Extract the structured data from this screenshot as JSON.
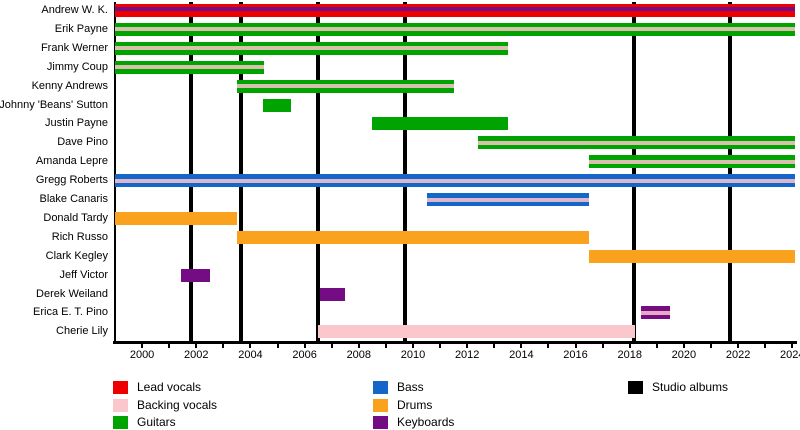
{
  "chart_data": {
    "type": "timeline",
    "description": "Band member tenure timeline (Gantt-style) with studio album release markers",
    "x_axis": {
      "min": 1999,
      "max": 2024.1,
      "labeled_ticks": [
        2000,
        2002,
        2004,
        2006,
        2008,
        2010,
        2012,
        2014,
        2016,
        2018,
        2020,
        2022,
        2024
      ],
      "minor_tick_every": 1,
      "grid": false
    },
    "roles": {
      "lead_vocals": {
        "label": "Lead vocals",
        "color": "#ee0000"
      },
      "backing_vocals": {
        "label": "Backing vocals",
        "color": "#f9c7cc"
      },
      "guitars": {
        "label": "Guitars",
        "color": "#00a400"
      },
      "bass": {
        "label": "Bass",
        "color": "#1467c8"
      },
      "drums": {
        "label": "Drums",
        "color": "#faa21d"
      },
      "keyboards": {
        "label": "Keyboards",
        "color": "#740d84"
      },
      "studio_albums": {
        "label": "Studio albums",
        "color": "#000000"
      }
    },
    "members": [
      {
        "name": "Andrew W. K.",
        "bars": [
          {
            "role": "lead_vocals",
            "start": 1999,
            "end": 2024.1,
            "stripe": "keyboards"
          }
        ]
      },
      {
        "name": "Erik Payne",
        "bars": [
          {
            "role": "guitars",
            "start": 1999,
            "end": 2024.1,
            "stripe": "backing_vocals"
          }
        ]
      },
      {
        "name": "Frank Werner",
        "bars": [
          {
            "role": "guitars",
            "start": 1999,
            "end": 2013.5,
            "stripe": "backing_vocals"
          }
        ]
      },
      {
        "name": "Jimmy Coup",
        "bars": [
          {
            "role": "guitars",
            "start": 1999,
            "end": 2004.5,
            "stripe": "backing_vocals"
          }
        ]
      },
      {
        "name": "Kenny Andrews",
        "bars": [
          {
            "role": "guitars",
            "start": 2003.5,
            "end": 2011.5,
            "stripe": "backing_vocals"
          }
        ]
      },
      {
        "name": "Johnny 'Beans' Sutton",
        "bars": [
          {
            "role": "guitars",
            "start": 2004.45,
            "end": 2005.5
          }
        ]
      },
      {
        "name": "Justin Payne",
        "bars": [
          {
            "role": "guitars",
            "start": 2008.5,
            "end": 2013.5
          }
        ]
      },
      {
        "name": "Dave Pino",
        "bars": [
          {
            "role": "guitars",
            "start": 2012.4,
            "end": 2024.1,
            "stripe": "backing_vocals"
          }
        ]
      },
      {
        "name": "Amanda Lepre",
        "bars": [
          {
            "role": "guitars",
            "start": 2016.5,
            "end": 2024.1,
            "stripe": "backing_vocals"
          }
        ]
      },
      {
        "name": "Gregg Roberts",
        "bars": [
          {
            "role": "bass",
            "start": 1999,
            "end": 2024.1,
            "stripe": "backing_vocals"
          }
        ]
      },
      {
        "name": "Blake Canaris",
        "bars": [
          {
            "role": "bass",
            "start": 2010.5,
            "end": 2016.5,
            "stripe": "backing_vocals"
          }
        ]
      },
      {
        "name": "Donald Tardy",
        "bars": [
          {
            "role": "drums",
            "start": 1999,
            "end": 2003.5
          }
        ]
      },
      {
        "name": "Rich Russo",
        "bars": [
          {
            "role": "drums",
            "start": 2003.5,
            "end": 2016.5
          }
        ]
      },
      {
        "name": "Clark Kegley",
        "bars": [
          {
            "role": "drums",
            "start": 2016.5,
            "end": 2024.1
          }
        ]
      },
      {
        "name": "Jeff Victor",
        "bars": [
          {
            "role": "keyboards",
            "start": 2001.45,
            "end": 2002.5
          }
        ]
      },
      {
        "name": "Derek Weiland",
        "bars": [
          {
            "role": "keyboards",
            "start": 2006.55,
            "end": 2007.5
          }
        ]
      },
      {
        "name": "Erica E. T. Pino",
        "bars": [
          {
            "role": "keyboards",
            "start": 2018.4,
            "end": 2019.5,
            "stripe": "backing_vocals"
          }
        ]
      },
      {
        "name": "Cherie Lily",
        "bars": [
          {
            "role": "backing_vocals",
            "start": 2006.5,
            "end": 2018.2
          }
        ]
      }
    ],
    "albums": {
      "legend_label": "Studio albums",
      "years": [
        2001.8,
        2003.65,
        2006.5,
        2009.7,
        2018.15,
        2021.7
      ]
    },
    "legend": {
      "columns": [
        [
          "lead_vocals",
          "backing_vocals",
          "guitars"
        ],
        [
          "bass",
          "drums",
          "keyboards"
        ],
        [
          "studio_albums"
        ]
      ]
    }
  }
}
